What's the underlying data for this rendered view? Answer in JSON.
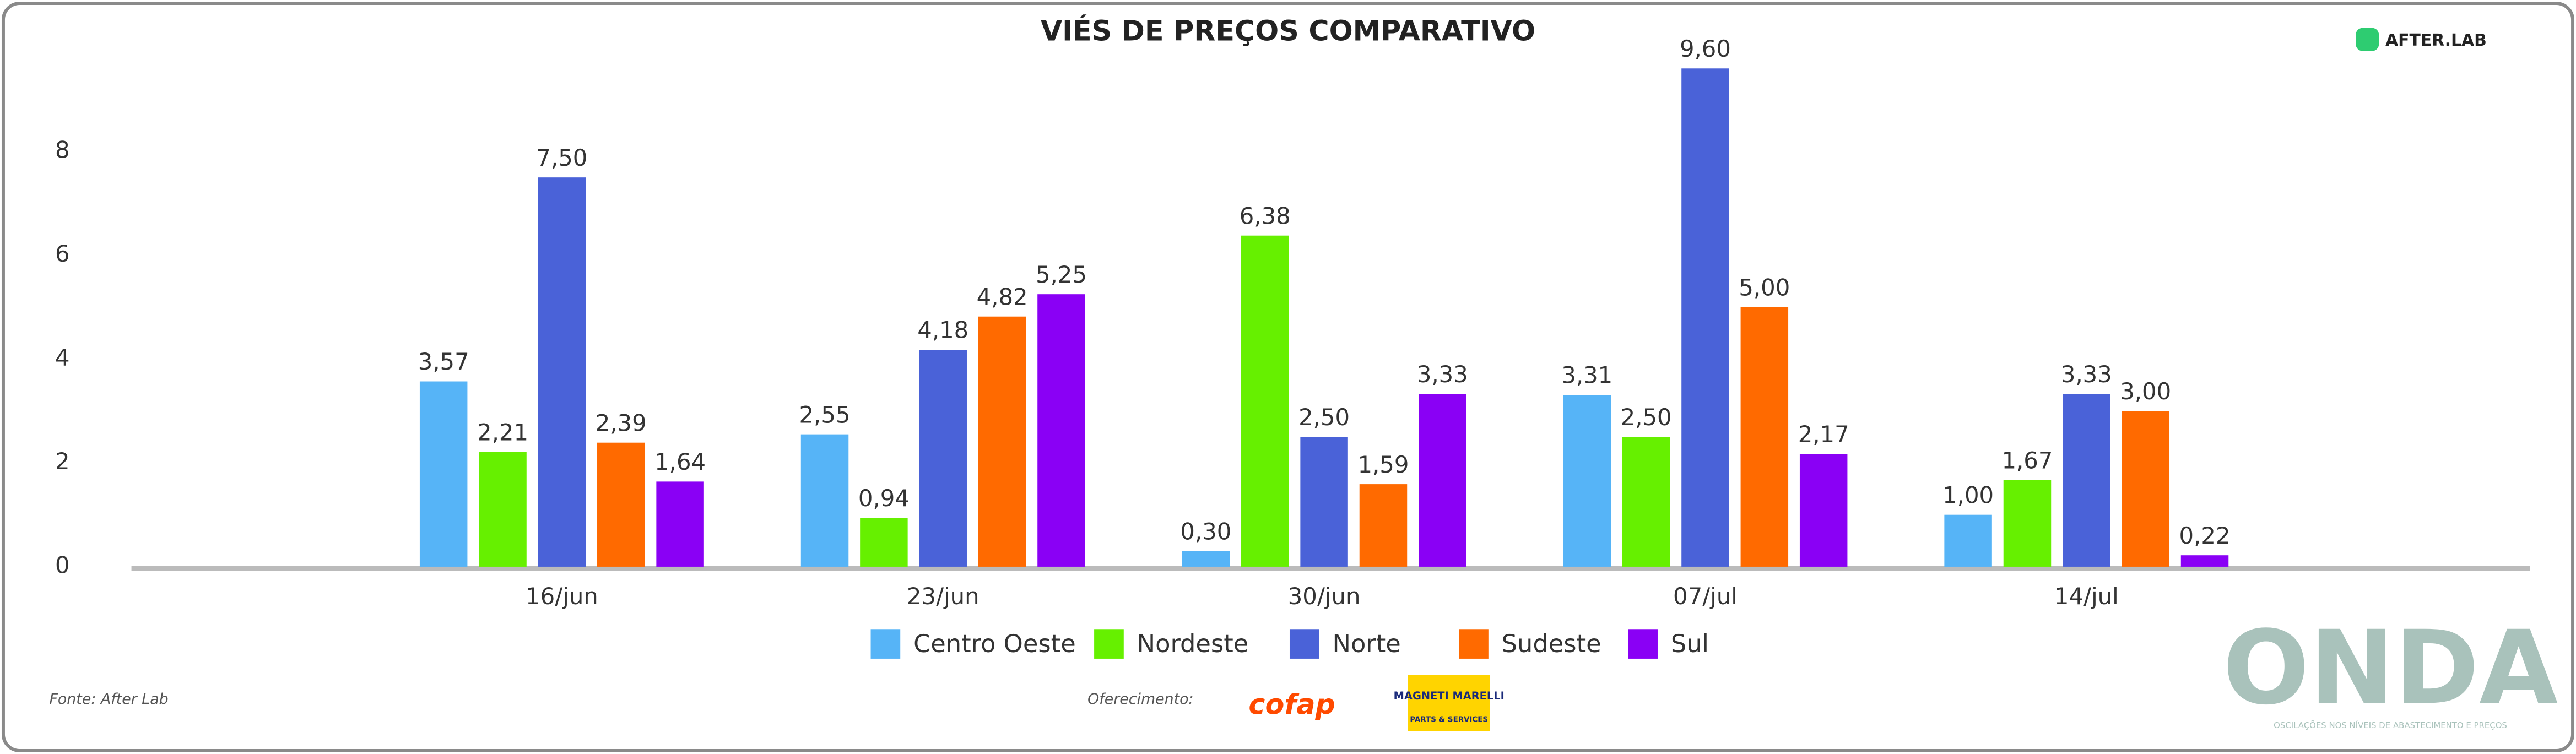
{
  "chart_data": {
    "type": "bar",
    "title": "VIÉS DE PREÇOS COMPARATIVO",
    "categories": [
      "16/jun",
      "23/jun",
      "30/jun",
      "07/jul",
      "14/jul"
    ],
    "series": [
      {
        "name": "Centro Oeste",
        "color": "#56b4f7",
        "values": [
          3.57,
          2.55,
          0.3,
          3.31,
          1.0
        ],
        "value_labels": [
          "3,57",
          "2,55",
          "0,30",
          "3,31",
          "1,00"
        ]
      },
      {
        "name": "Nordeste",
        "color": "#66f000",
        "values": [
          2.21,
          0.94,
          6.38,
          2.5,
          1.67
        ],
        "value_labels": [
          "2,21",
          "0,94",
          "6,38",
          "2,50",
          "1,67"
        ]
      },
      {
        "name": "Norte",
        "color": "#4a62d8",
        "values": [
          7.5,
          4.18,
          2.5,
          9.6,
          3.33
        ],
        "value_labels": [
          "7,50",
          "4,18",
          "2,50",
          "9,60",
          "3,33"
        ]
      },
      {
        "name": "Sudeste",
        "color": "#ff6a00",
        "values": [
          2.39,
          4.82,
          1.59,
          5.0,
          3.0
        ],
        "value_labels": [
          "2,39",
          "4,82",
          "1,59",
          "5,00",
          "3,00"
        ]
      },
      {
        "name": "Sul",
        "color": "#8a00f5",
        "values": [
          1.64,
          5.25,
          3.33,
          2.17,
          0.22
        ],
        "value_labels": [
          "1,64",
          "5,25",
          "3,33",
          "2,17",
          "0,22"
        ]
      }
    ],
    "ylim": [
      0,
      10
    ],
    "yticks": [
      0,
      2,
      4,
      6,
      8
    ],
    "grid": false,
    "legend": "bottom"
  },
  "branding": {
    "logo": "AFTER.LAB",
    "source": "Fonte: After Lab",
    "sponsor_label": "Oferecimento:",
    "sponsor_1": "cofap",
    "sponsor_2": "MAGNETI MARELLI",
    "sponsor_2_sub": "PARTS & SERVICES",
    "brand": "ONDA",
    "brand_tagline": "OSCILAÇÕES NOS NÍVEIS DE ABASTECIMENTO E PREÇOS"
  }
}
